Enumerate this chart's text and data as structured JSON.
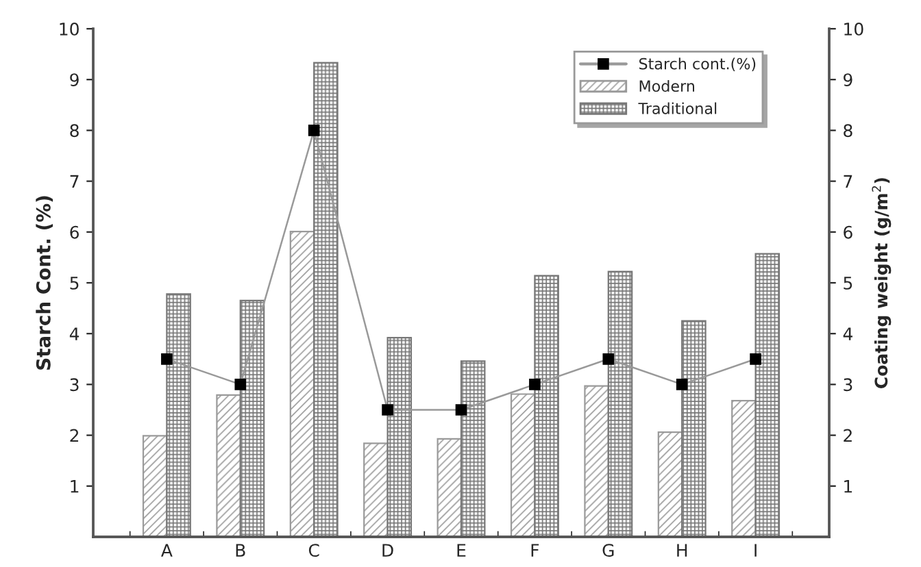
{
  "chart_data": {
    "type": "bar",
    "ylabel": "Starch Cont. (%)",
    "y2label": "Coating weight (g/m$^{2}$)",
    "categories": [
      "A",
      "B",
      "C",
      "D",
      "E",
      "F",
      "G",
      "H",
      "I"
    ],
    "series": [
      {
        "name": "Starch cont.(%)",
        "type": "line",
        "color": "#999999",
        "marker": "square",
        "values": [
          3.5,
          3,
          8,
          2.5,
          2.5,
          3,
          3.5,
          3,
          3.5
        ]
      },
      {
        "name": "Modern",
        "axis": "y2",
        "color": "#9a9a9a",
        "values": [
          1.99,
          2.79,
          6.01,
          1.84,
          1.93,
          2.81,
          2.97,
          2.06,
          2.68
        ]
      },
      {
        "name": "Traditional",
        "axis": "y2",
        "color": "#777777",
        "values": [
          4.78,
          4.65,
          9.33,
          3.92,
          3.46,
          5.14,
          5.22,
          4.25,
          5.57
        ]
      }
    ],
    "ylim": [
      0,
      10
    ],
    "yticks": [
      1,
      2,
      3,
      4,
      5,
      6,
      7,
      8,
      9,
      10
    ],
    "y2lim": [
      0,
      10
    ],
    "y2ticks": [
      1,
      2,
      3,
      4,
      5,
      6,
      7,
      8,
      9,
      10
    ],
    "legend": "top right",
    "grid": false
  }
}
